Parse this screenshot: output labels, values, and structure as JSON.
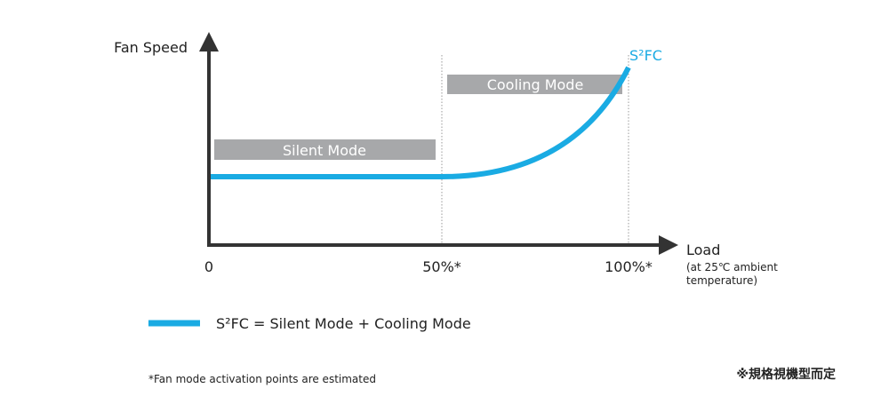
{
  "axes": {
    "y_label": "Fan Speed",
    "x_label": "Load",
    "x_note": [
      "(at 25℃ ambient",
      "temperature)"
    ],
    "x_points": [
      "0",
      "50%*",
      "100%*"
    ]
  },
  "curve_label": "S²FC",
  "modes": {
    "silent": "Silent Mode",
    "cooling": "Cooling Mode"
  },
  "legend": "S²FC = Silent Mode + Cooling Mode",
  "footnote": "*Fan mode activation points are estimated",
  "note": "※規格視機型而定"
}
